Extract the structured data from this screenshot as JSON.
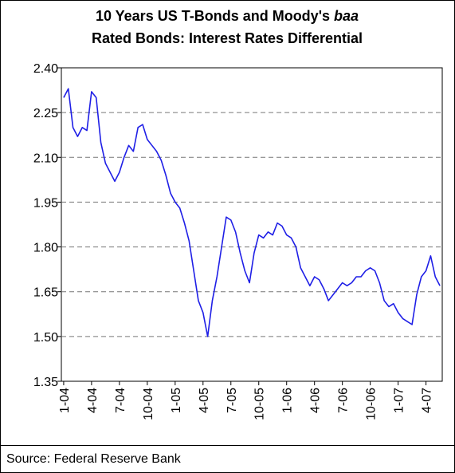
{
  "chart_data": {
    "type": "line",
    "title": [
      "10 Years US T-Bonds and Moody's",
      "baa",
      "Rated Bonds: Interest Rates Differential"
    ],
    "source": "Source: Federal Reserve Bank",
    "categories": [
      "1-04",
      null,
      null,
      null,
      null,
      null,
      "4-04",
      null,
      null,
      null,
      null,
      null,
      "7-04",
      null,
      null,
      null,
      null,
      null,
      "10-04",
      null,
      null,
      null,
      null,
      null,
      "1-05",
      null,
      null,
      null,
      null,
      null,
      "4-05",
      null,
      null,
      null,
      null,
      null,
      "7-05",
      null,
      null,
      null,
      null,
      null,
      "10-05",
      null,
      null,
      null,
      null,
      null,
      "1-06",
      null,
      null,
      null,
      null,
      null,
      "4-06",
      null,
      null,
      null,
      null,
      null,
      "7-06",
      null,
      null,
      null,
      null,
      null,
      "10-06",
      null,
      null,
      null,
      null,
      null,
      "1-07",
      null,
      null,
      null,
      null,
      null,
      "4-07",
      null,
      null,
      null
    ],
    "series": [
      {
        "name": "Interest Rates Differential",
        "color": "#1f1fe6",
        "values": [
          2.3,
          2.33,
          2.2,
          2.17,
          2.2,
          2.19,
          2.32,
          2.3,
          2.15,
          2.08,
          2.05,
          2.02,
          2.05,
          2.1,
          2.14,
          2.12,
          2.2,
          2.21,
          2.16,
          2.14,
          2.12,
          2.09,
          2.04,
          1.98,
          1.95,
          1.93,
          1.88,
          1.82,
          1.72,
          1.62,
          1.58,
          1.5,
          1.62,
          1.7,
          1.8,
          1.9,
          1.89,
          1.85,
          1.78,
          1.72,
          1.68,
          1.78,
          1.84,
          1.83,
          1.85,
          1.84,
          1.88,
          1.87,
          1.84,
          1.83,
          1.8,
          1.73,
          1.7,
          1.67,
          1.7,
          1.69,
          1.66,
          1.62,
          1.64,
          1.66,
          1.68,
          1.67,
          1.68,
          1.7,
          1.7,
          1.72,
          1.73,
          1.72,
          1.68,
          1.62,
          1.6,
          1.61,
          1.58,
          1.56,
          1.55,
          1.54,
          1.64,
          1.7,
          1.72,
          1.77,
          1.7,
          1.67
        ]
      }
    ],
    "ylim": [
      1.35,
      2.4
    ],
    "yticks": [
      {
        "value": 1.35,
        "label": "1.35"
      },
      {
        "value": 1.5,
        "label": "1.50"
      },
      {
        "value": 1.65,
        "label": "1.65"
      },
      {
        "value": 1.8,
        "label": "1.80"
      },
      {
        "value": 1.95,
        "label": "1.95"
      },
      {
        "value": 2.1,
        "label": "2.10"
      },
      {
        "value": 2.25,
        "label": "2.25"
      },
      {
        "value": 2.4,
        "label": "2.40"
      }
    ],
    "grid": true
  }
}
